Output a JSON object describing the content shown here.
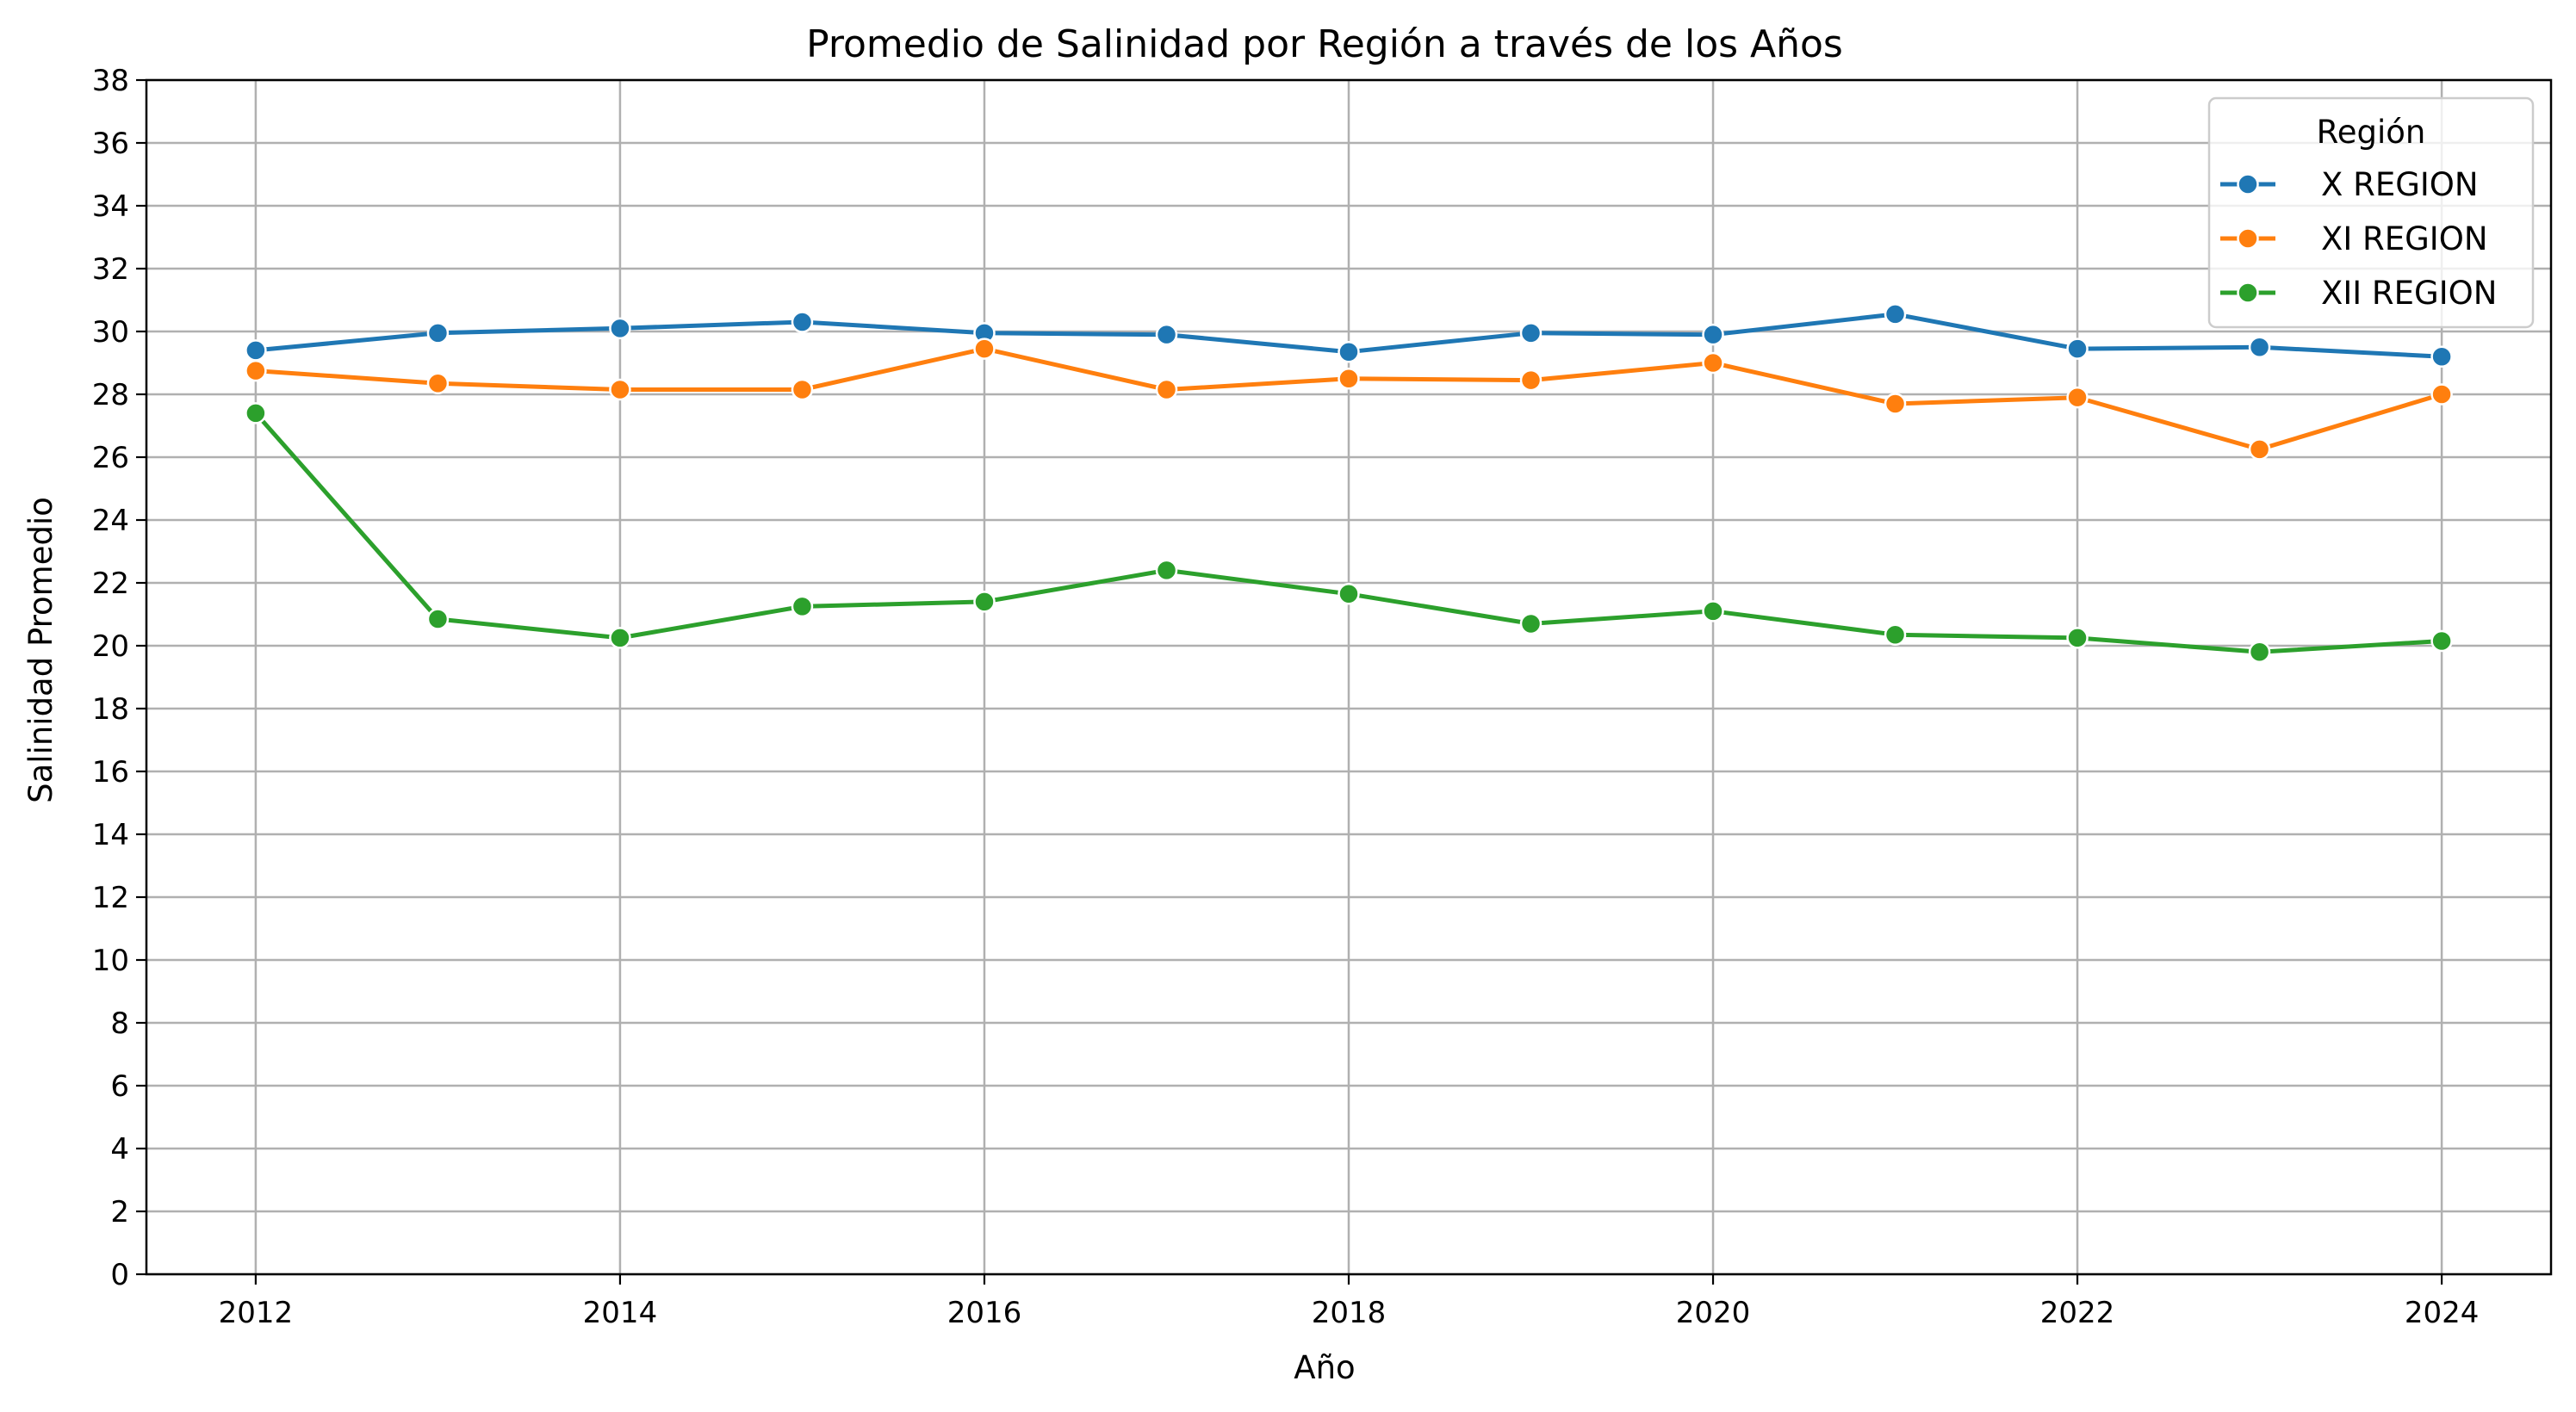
{
  "chart_data": {
    "type": "line",
    "title": "Promedio de Salinidad por Región a través de los Años",
    "xlabel": "Año",
    "ylabel": "Salinidad Promedio",
    "x": [
      2012,
      2013,
      2014,
      2015,
      2016,
      2017,
      2018,
      2019,
      2020,
      2021,
      2022,
      2023,
      2024
    ],
    "xlim": [
      2011.4,
      2024.6
    ],
    "ylim": [
      0,
      38
    ],
    "x_ticks": [
      2012,
      2014,
      2016,
      2018,
      2020,
      2022,
      2024
    ],
    "y_ticks": [
      0,
      2,
      4,
      6,
      8,
      10,
      12,
      14,
      16,
      18,
      20,
      22,
      24,
      26,
      28,
      30,
      32,
      34,
      36,
      38
    ],
    "grid": true,
    "legend": {
      "title": "Región",
      "placement": "top-right"
    },
    "series": [
      {
        "name": "X REGION",
        "color": "#1f77b4",
        "values": [
          29.4,
          29.95,
          30.1,
          30.3,
          29.95,
          29.9,
          29.35,
          29.95,
          29.9,
          30.55,
          29.45,
          29.5,
          29.2
        ]
      },
      {
        "name": "XI REGION",
        "color": "#ff7f0e",
        "values": [
          28.75,
          28.35,
          28.15,
          28.15,
          29.45,
          28.15,
          28.5,
          28.45,
          29.0,
          27.7,
          27.9,
          26.25,
          28.0
        ]
      },
      {
        "name": "XII REGION",
        "color": "#2ca02c",
        "values": [
          27.4,
          20.85,
          20.25,
          21.25,
          21.4,
          22.4,
          21.65,
          20.7,
          21.1,
          20.35,
          20.25,
          19.8,
          20.15
        ]
      }
    ]
  }
}
